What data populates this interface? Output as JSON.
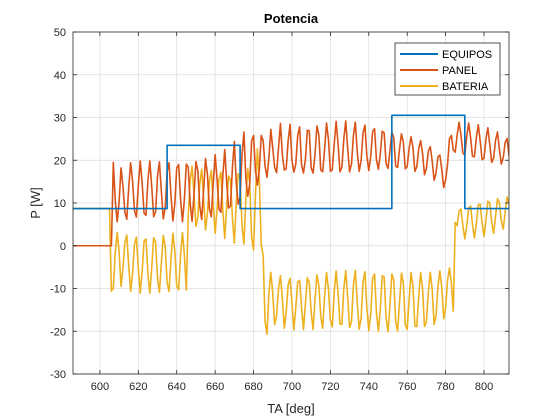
{
  "chart_data": {
    "type": "line",
    "title": "Potencia",
    "xlabel": "TA [deg]",
    "ylabel": "P [W]",
    "xlim": [
      586,
      813
    ],
    "ylim": [
      -30,
      50
    ],
    "xticks": [
      600,
      620,
      640,
      660,
      680,
      700,
      720,
      740,
      760,
      780,
      800
    ],
    "yticks": [
      -30,
      -20,
      -10,
      0,
      10,
      20,
      30,
      40,
      50
    ],
    "grid": true,
    "legend_position": "top-right",
    "series": [
      {
        "name": "EQUIPOS",
        "color": "#0072BD",
        "x": [
          586,
          635,
          635,
          673,
          673,
          752,
          752,
          790,
          790,
          813
        ],
        "y": [
          8.7,
          8.7,
          23.5,
          23.5,
          8.7,
          8.7,
          30.5,
          30.5,
          8.7,
          8.7
        ]
      },
      {
        "name": "PANEL",
        "color": "#D95319",
        "x_start": 586,
        "x_step": 1,
        "y": [
          0,
          0,
          0,
          0,
          0,
          0,
          0,
          0,
          0,
          0,
          0,
          0,
          0,
          0,
          0,
          0,
          0,
          0,
          0,
          0,
          0.0,
          19.5,
          10.6,
          5.6,
          10.2,
          18.2,
          14.0,
          7.9,
          6.2,
          13.5,
          19.4,
          15.2,
          8.3,
          6.7,
          14.0,
          19.8,
          14.7,
          7.6,
          7.1,
          15.2,
          19.8,
          13.8,
          6.8,
          7.9,
          16.2,
          19.6,
          12.8,
          6.3,
          8.8,
          17.3,
          19.4,
          11.9,
          5.8,
          9.8,
          18.2,
          19.0,
          10.9,
          5.6,
          10.9,
          19.1,
          18.4,
          10.0,
          5.7,
          11.9,
          19.7,
          17.5,
          9.3,
          6.1,
          13.1,
          20.4,
          16.6,
          8.8,
          6.8,
          14.5,
          21.3,
          15.7,
          8.6,
          7.8,
          16.2,
          22.5,
          15.0,
          8.8,
          9.3,
          18.3,
          24.4,
          14.7,
          9.7,
          11.4,
          21.3,
          26.6,
          15.6,
          11.6,
          14.4,
          24.5,
          25.8,
          17.5,
          14.2,
          17.7,
          25.8,
          24.6,
          18.6,
          16.0,
          20.5,
          27.2,
          22.8,
          18.3,
          17.1,
          22.9,
          28.6,
          21.3,
          17.7,
          18.0,
          24.5,
          28.4,
          20.0,
          17.2,
          19.1,
          25.9,
          27.8,
          18.9,
          17.0,
          20.2,
          27.0,
          26.9,
          18.2,
          17.0,
          21.4,
          28.0,
          25.9,
          17.7,
          17.3,
          22.6,
          28.7,
          24.9,
          17.4,
          17.8,
          23.8,
          29.1,
          23.9,
          17.3,
          18.4,
          25.0,
          29.2,
          22.9,
          17.3,
          19.2,
          25.8,
          28.9,
          21.9,
          17.4,
          20.0,
          26.4,
          28.2,
          21.0,
          17.6,
          20.8,
          26.7,
          27.4,
          20.1,
          17.9,
          21.5,
          26.8,
          26.4,
          19.3,
          18.1,
          22.1,
          26.6,
          25.3,
          18.6,
          18.3,
          22.6,
          26.2,
          24.2,
          18.0,
          18.5,
          22.8,
          25.5,
          23.0,
          17.4,
          18.5,
          22.7,
          24.6,
          21.6,
          16.6,
          18.1,
          22.1,
          23.2,
          19.9,
          15.3,
          17.0,
          20.8,
          21.2,
          17.9,
          13.6,
          15.4,
          19.0,
          25.0,
          25.8,
          22.4,
          21.9,
          25.9,
          28.9,
          25.9,
          21.7,
          21.2,
          25.6,
          28.7,
          25.3,
          20.9,
          20.8,
          25.3,
          28.3,
          24.5,
          20.1,
          20.5,
          25.0,
          27.6,
          23.6,
          19.5,
          20.5,
          24.7,
          26.6,
          22.6,
          19.1,
          20.6,
          24.2,
          25.1,
          21.1,
          18.6,
          20.6,
          23.1,
          22.8,
          18.7,
          17.4,
          19.7,
          20.5,
          19.0,
          14.6,
          8.8,
          13.5,
          18.0,
          16.5,
          9.7,
          8.8,
          15.0,
          17.4
        ],
        "note": ""
      },
      {
        "name": "BATERIA",
        "color": "#EDB120",
        "x_start": 586,
        "x_step": 1,
        "y": [
          8.7,
          8.7,
          8.7,
          8.7,
          8.7,
          8.7,
          8.7,
          8.7,
          8.7,
          8.7,
          8.7,
          8.7,
          8.7,
          8.7,
          8.7,
          8.7,
          8.7,
          8.7,
          8.7,
          8.7,
          -10.6,
          -10.0,
          -1.5,
          3.1,
          -1.3,
          -9.5,
          -5.3,
          0.7,
          2.5,
          -4.7,
          -10.7,
          -6.5,
          0.4,
          2.0,
          -5.3,
          -11.1,
          -6.0,
          1.1,
          1.6,
          -6.5,
          -11.1,
          -5.1,
          1.9,
          0.8,
          -7.5,
          -10.9,
          -4.1,
          2.4,
          -0.1,
          -8.6,
          -10.7,
          -3.2,
          2.9,
          -1.1,
          -9.5,
          -10.3,
          -2.2,
          3.1,
          -2.2,
          -10.4,
          7.1,
          15.2,
          18.6,
          12.1,
          4.5,
          6.8,
          14.5,
          17.9,
          11.0,
          3.7,
          7.6,
          15.0,
          17.6,
          9.8,
          2.9,
          8.5,
          15.6,
          17.2,
          8.4,
          1.7,
          9.3,
          16.3,
          15.4,
          6.5,
          0.6,
          10.0,
          16.9,
          15.6,
          4.7,
          0.4,
          11.1,
          18.0,
          14.6,
          2.0,
          -1.0,
          11.9,
          22.7,
          15.4,
          0.2,
          -2.2,
          -17.8,
          -20.7,
          -11.0,
          -6.2,
          -11.2,
          -18.4,
          -16.4,
          -10.1,
          -7.0,
          -12.4,
          -19.3,
          -15.5,
          -9.2,
          -7.6,
          -13.4,
          -19.7,
          -14.5,
          -8.4,
          -8.1,
          -14.5,
          -19.6,
          -13.6,
          -7.5,
          -8.6,
          -15.5,
          -19.6,
          -12.6,
          -6.8,
          -9.3,
          -16.5,
          -19.3,
          -11.7,
          -6.3,
          -10.1,
          -17.4,
          -19.0,
          -10.8,
          -5.9,
          -11.0,
          -18.3,
          -18.4,
          -10.0,
          -5.8,
          -12.0,
          -19.1,
          -17.7,
          -9.1,
          -5.8,
          -13.2,
          -19.5,
          -17.0,
          -8.3,
          -6.1,
          -14.5,
          -19.9,
          -16.0,
          -7.6,
          -6.6,
          -15.7,
          -20.0,
          -15.0,
          -7.0,
          -7.3,
          -16.8,
          -20.1,
          -14.1,
          -6.6,
          -8.0,
          -17.7,
          -20.0,
          -13.3,
          -6.4,
          -8.7,
          -18.4,
          -19.6,
          -12.6,
          -6.3,
          -9.4,
          -18.8,
          -18.9,
          -11.8,
          -6.3,
          -10.0,
          -18.9,
          -17.8,
          -10.9,
          -6.2,
          -10.2,
          -18.4,
          -16.4,
          -9.7,
          -5.9,
          -9.8,
          -17.1,
          -14.6,
          -8.1,
          -5.2,
          -8.7,
          -15.3,
          5.5,
          4.7,
          8.1,
          8.6,
          4.6,
          1.6,
          4.6,
          8.8,
          9.3,
          4.9,
          1.8,
          5.2,
          9.6,
          9.7,
          5.2,
          2.2,
          6.0,
          10.4,
          10.0,
          5.5,
          2.9,
          6.9,
          11.0,
          10.0,
          5.8,
          3.9,
          7.9,
          11.4,
          9.9,
          6.3,
          5.4,
          9.7,
          11.9,
          9.3,
          7.1,
          7.7,
          12.0,
          13.3,
          17.3,
          9.3,
          -0.1,
          -7.8,
          -4.2,
          -10.0,
          -11.5,
          -5.4,
          -8.7
        ],
        "note": ""
      }
    ]
  }
}
